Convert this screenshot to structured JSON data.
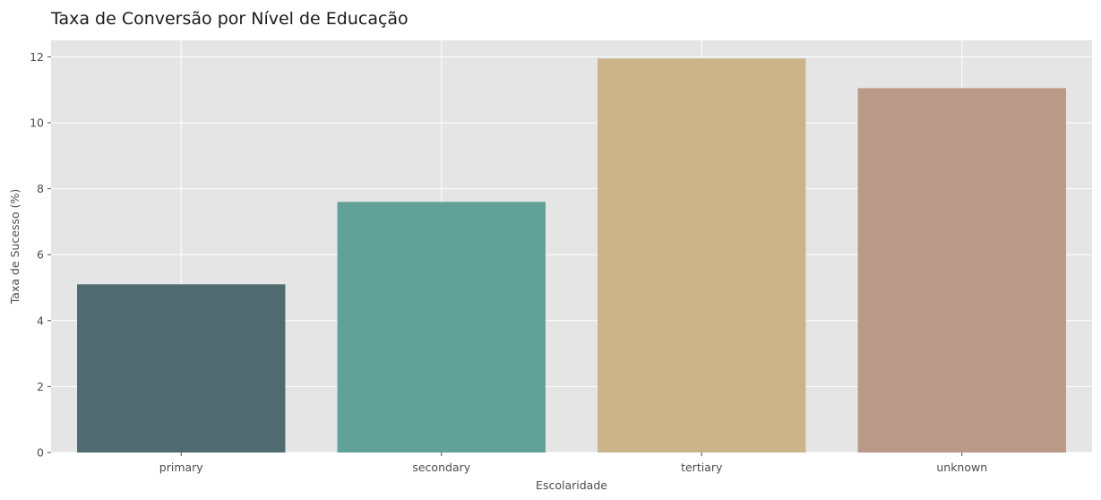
{
  "chart_data": {
    "type": "bar",
    "title": "Taxa de Conversão por Nível de Educação",
    "xlabel": "Escolaridade",
    "ylabel": "Taxa de Sucesso (%)",
    "categories": [
      "primary",
      "secondary",
      "tertiary",
      "unknown"
    ],
    "values": [
      5.1,
      7.6,
      11.95,
      11.05
    ],
    "colors": [
      "#4f6b70",
      "#62a198",
      "#cbb489",
      "#bb9988"
    ],
    "ylim": [
      0,
      12.5
    ],
    "yticks": [
      0,
      2,
      4,
      6,
      8,
      10,
      12
    ],
    "grid": true,
    "background": "#e5e5e5"
  }
}
